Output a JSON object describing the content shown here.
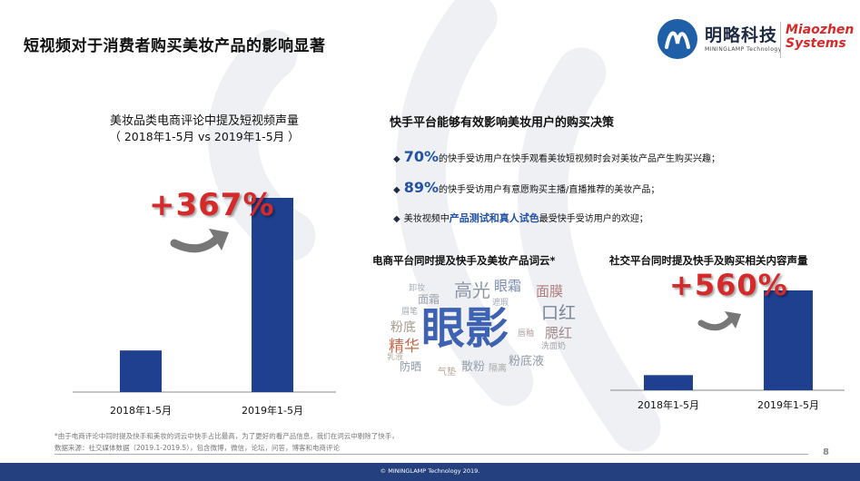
{
  "slide": {
    "title": "短视频对于消费者购买美妆产品的影响显著",
    "page_number": "8"
  },
  "logos": {
    "mininglamp_cn": "明略科技",
    "mininglamp_en": "MININGLAMP Technology",
    "miaozhen": "Miaozhen Systems"
  },
  "left_chart": {
    "title_line1": "美妆品类电商评论中提及短视频声量",
    "title_line2": "（ 2018年1-5月 vs 2019年1-5月 ）",
    "growth": "+367%"
  },
  "survey": {
    "title": "快手平台能够有效影响美妆用户的购买决策",
    "bullets": [
      {
        "highlight": "70%",
        "text": "的快手受访用户在快手观看美妆短视频时会对美妆产品产生购买兴趣；"
      },
      {
        "highlight": "89%",
        "text": "的快手受访用户有意愿购买主播/直播推荐的美妆产品；"
      },
      {
        "prefix": "美妆视频中",
        "highlight": "产品测试和真人试色",
        "text": "最受快手受访用户的欢迎；"
      }
    ]
  },
  "word_cloud": {
    "title": "电商平台同时提及快手及美妆产品词云*",
    "words": [
      "眼影",
      "高光",
      "眼霜",
      "面膜",
      "口红",
      "腮红",
      "粉底液",
      "精华",
      "面霜",
      "粉底",
      "防晒",
      "散粉",
      "隔离",
      "气垫",
      "眉笔",
      "遮瑕",
      "唇釉",
      "洗面奶",
      "卸妆",
      "乳液"
    ]
  },
  "right_chart": {
    "title": "社交平台同时提及快手及购买相关内容声量",
    "growth": "+560%"
  },
  "chart_data": [
    {
      "type": "bar",
      "title": "美妆品类电商评论中提及短视频声量",
      "categories": [
        "2018年1-5月",
        "2019年1-5月"
      ],
      "values": [
        100,
        467
      ],
      "ylim": [
        0,
        500
      ],
      "annotation": "+367%",
      "color": "#1f3f8f"
    },
    {
      "type": "bar",
      "title": "社交平台同时提及快手及购买相关内容声量",
      "categories": [
        "2018年1-5月",
        "2019年1-5月"
      ],
      "values": [
        100,
        660
      ],
      "ylim": [
        0,
        700
      ],
      "annotation": "+560%",
      "color": "#1f3f8f"
    }
  ],
  "footnotes": {
    "note1": "*由于电商评论中同时提及快手和美妆的词云中快手占比最高，为了更好的看产品信息，我们在词云中剔除了快手，",
    "note2": "数据来源：社交媒体数据（2019.1-2019.5），包含微博，微信，论坛，问答，博客和电商评论"
  },
  "footer": {
    "copyright": "© MININGLAMP Technology 2019."
  },
  "colors": {
    "bar": "#1f3f8f",
    "accent_red": "#d62a2a",
    "accent_blue": "#2351a5",
    "footer_bar": "#24407e"
  }
}
